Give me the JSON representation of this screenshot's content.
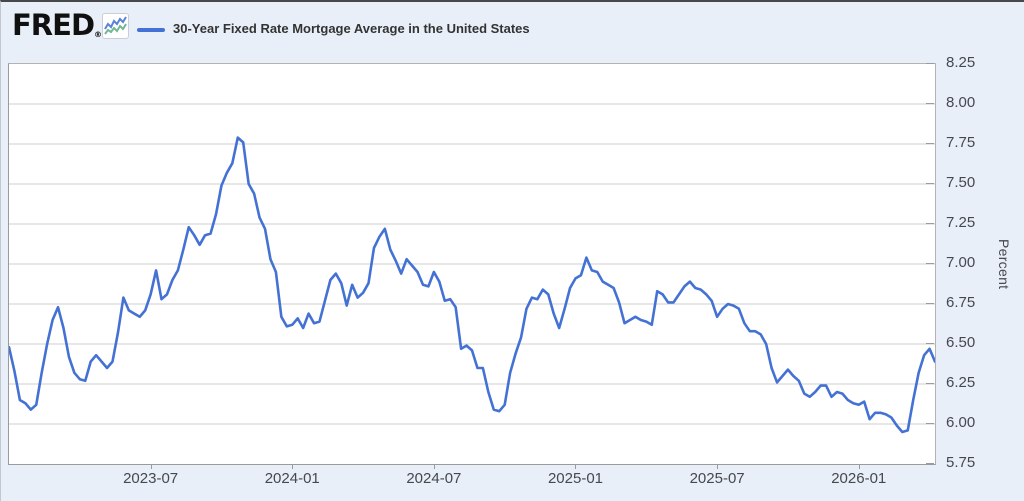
{
  "header": {
    "logo_text": "FRED",
    "registered_mark": "®",
    "legend_label": "30-Year Fixed Rate Mortgage Average in the United States"
  },
  "colors": {
    "series_line": "#4472d4",
    "page_background": "#e9eff9",
    "plot_background": "#ffffff",
    "gridline": "#cfcfcf",
    "plot_border": "#b3b3b3",
    "tick": "#9b9b9b",
    "axis_text": "#45484c",
    "title_text": "#333333",
    "logo_icon_blue": "#5a82d6",
    "logo_icon_green": "#74b793"
  },
  "chart_data": {
    "type": "line",
    "title": "30-Year Fixed Rate Mortgage Average in the United States",
    "xlabel": "",
    "ylabel": "Percent",
    "ylim": [
      5.75,
      8.25
    ],
    "grid": true,
    "legend_position": "top-left header",
    "frequency": "weekly",
    "y_tick_labels": [
      "8.25",
      "8.00",
      "7.75",
      "7.50",
      "7.25",
      "7.00",
      "6.75",
      "6.50",
      "6.25",
      "6.00",
      "5.75"
    ],
    "x_ticks": [
      {
        "label": "2023-07",
        "week_index": 26
      },
      {
        "label": "2024-01",
        "week_index": 52
      },
      {
        "label": "2024-07",
        "week_index": 78
      },
      {
        "label": "2025-01",
        "week_index": 104
      },
      {
        "label": "2025-07",
        "week_index": 130
      },
      {
        "label": "2026-01",
        "week_index": 156
      }
    ],
    "series": [
      {
        "name": "30-Year Fixed Rate Mortgage Average in the United States",
        "units": "Percent",
        "values": [
          6.48,
          6.33,
          6.15,
          6.13,
          6.09,
          6.12,
          6.32,
          6.5,
          6.65,
          6.73,
          6.6,
          6.42,
          6.32,
          6.28,
          6.27,
          6.39,
          6.43,
          6.39,
          6.35,
          6.39,
          6.57,
          6.79,
          6.71,
          6.69,
          6.67,
          6.71,
          6.81,
          6.96,
          6.78,
          6.81,
          6.9,
          6.96,
          7.09,
          7.23,
          7.18,
          7.12,
          7.18,
          7.19,
          7.31,
          7.49,
          7.57,
          7.63,
          7.79,
          7.76,
          7.5,
          7.44,
          7.29,
          7.22,
          7.03,
          6.95,
          6.67,
          6.61,
          6.62,
          6.66,
          6.6,
          6.69,
          6.63,
          6.64,
          6.77,
          6.9,
          6.94,
          6.88,
          6.74,
          6.87,
          6.79,
          6.82,
          6.88,
          7.1,
          7.17,
          7.22,
          7.09,
          7.02,
          6.94,
          7.03,
          6.99,
          6.95,
          6.87,
          6.86,
          6.95,
          6.89,
          6.77,
          6.78,
          6.73,
          6.47,
          6.49,
          6.46,
          6.35,
          6.35,
          6.2,
          6.09,
          6.08,
          6.12,
          6.32,
          6.44,
          6.54,
          6.72,
          6.79,
          6.78,
          6.84,
          6.81,
          6.69,
          6.6,
          6.72,
          6.85,
          6.91,
          6.93,
          7.04,
          6.96,
          6.95,
          6.89,
          6.87,
          6.85,
          6.76,
          6.63,
          6.65,
          6.67,
          6.65,
          6.64,
          6.62,
          6.83,
          6.81,
          6.76,
          6.76,
          6.81,
          6.86,
          6.89,
          6.85,
          6.84,
          6.81,
          6.77,
          6.67,
          6.72,
          6.75,
          6.74,
          6.72,
          6.63,
          6.58,
          6.58,
          6.56,
          6.5,
          6.35,
          6.26,
          6.3,
          6.34,
          6.3,
          6.27,
          6.19,
          6.17,
          6.2,
          6.24,
          6.24,
          6.17,
          6.2,
          6.19,
          6.15,
          6.13,
          6.12,
          6.14,
          6.03,
          6.07,
          6.07,
          6.06,
          6.04,
          5.99,
          5.95,
          5.96,
          6.15,
          6.32,
          6.43,
          6.47,
          6.39
        ]
      }
    ]
  }
}
